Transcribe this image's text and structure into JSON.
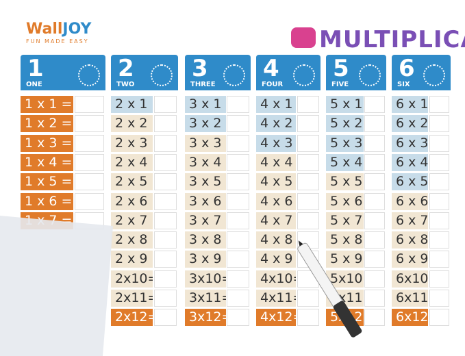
{
  "header": {
    "logo_wall": "Wall",
    "logo_joy": "JOY",
    "tagline": "FUN MADE EASY",
    "title": "MULTIPLICAT"
  },
  "columns": [
    {
      "number": "1",
      "word": "ONE",
      "rows": [
        "1 x 1 =",
        "1 x 2 =",
        "1 x 3 =",
        "1 x 4 =",
        "1 x 5 =",
        "1 x 6 =",
        "1 x 7 ="
      ]
    },
    {
      "number": "2",
      "word": "TWO",
      "rows": [
        "2 x 1 =",
        "2 x 2 =",
        "2 x 3 =",
        "2 x 4 =",
        "2 x 5 =",
        "2 x 6 =",
        "2 x 7 =",
        "2 x 8 =",
        "2 x 9 =",
        "2x10=",
        "2x11=",
        "2x12="
      ]
    },
    {
      "number": "3",
      "word": "THREE",
      "rows": [
        "3 x 1 =",
        "3 x 2 =",
        "3 x 3 =",
        "3 x 4 =",
        "3 x 5 =",
        "3 x 6 =",
        "3 x 7 =",
        "3 x 8 =",
        "3 x 9 =",
        "3x10=",
        "3x11=",
        "3x12="
      ]
    },
    {
      "number": "4",
      "word": "FOUR",
      "rows": [
        "4 x 1 =",
        "4 x 2 =",
        "4 x 3 =",
        "4 x 4 =",
        "4 x 5 =",
        "4 x 6 =",
        "4 x 7 =",
        "4 x 8 =",
        "4 x 9 =",
        "4x10=",
        "4x11=",
        "4x12="
      ]
    },
    {
      "number": "5",
      "word": "FIVE",
      "rows": [
        "5 x 1 =",
        "5 x 2 =",
        "5 x 3 =",
        "5 x 4 =",
        "5 x 5 =",
        "5 x 6 =",
        "5 x 7 =",
        "5 x 8 =",
        "5 x 9 =",
        "5x10=",
        "5x11=",
        "5x12="
      ]
    },
    {
      "number": "6",
      "word": "SIX",
      "rows": [
        "6 x 1 =",
        "6 x 2 =",
        "6 x 3 =",
        "6 x 4 =",
        "6 x 5 =",
        "6 x 6 =",
        "6 x 7 =",
        "6 x 8 =",
        "6 x 9 =",
        "6x10=",
        "6x11=",
        "6x12="
      ]
    }
  ]
}
